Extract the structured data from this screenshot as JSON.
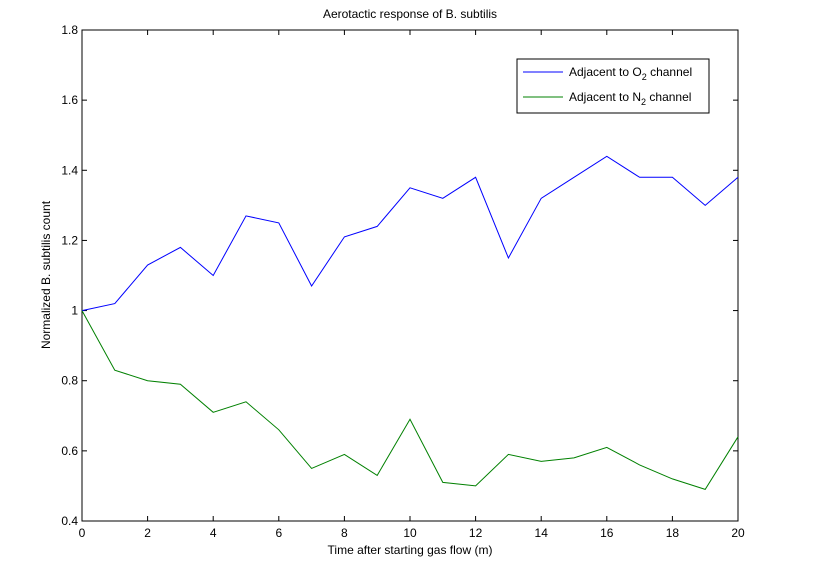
{
  "chart_data": {
    "type": "line",
    "title": "Aerotactic response of B. subtilis",
    "xlabel": "Time after starting gas flow (m)",
    "ylabel": "Normalized B. subtilis count",
    "xlim": [
      0,
      20
    ],
    "ylim": [
      0.4,
      1.8
    ],
    "xticks": [
      0,
      2,
      4,
      6,
      8,
      10,
      12,
      14,
      16,
      18,
      20
    ],
    "yticks": [
      0.4,
      0.6,
      0.8,
      1,
      1.2,
      1.4,
      1.6,
      1.8
    ],
    "xtick_labels": [
      "0",
      "2",
      "4",
      "6",
      "8",
      "10",
      "12",
      "14",
      "16",
      "18",
      "20"
    ],
    "ytick_labels": [
      "0.4",
      "0.6",
      "0.8",
      "1",
      "1.2",
      "1.4",
      "1.6",
      "1.8"
    ],
    "grid": false,
    "legend_position": "top-right",
    "x": [
      0,
      1,
      2,
      3,
      4,
      5,
      6,
      7,
      8,
      9,
      10,
      11,
      12,
      13,
      14,
      15,
      16,
      17,
      18,
      19,
      20
    ],
    "series": [
      {
        "name": "Adjacent to O2 channel",
        "legend_main": "Adjacent to O",
        "legend_sub": "2",
        "legend_tail": " channel",
        "color": "#0000ff",
        "values": [
          1.0,
          1.02,
          1.13,
          1.18,
          1.1,
          1.27,
          1.25,
          1.07,
          1.21,
          1.24,
          1.35,
          1.32,
          1.38,
          1.15,
          1.32,
          1.38,
          1.44,
          1.38,
          1.38,
          1.3,
          1.38
        ]
      },
      {
        "name": "Adjacent to N2 channel",
        "legend_main": "Adjacent to N",
        "legend_sub": "2",
        "legend_tail": " channel",
        "color": "#008000",
        "values": [
          1.0,
          0.83,
          0.8,
          0.79,
          0.71,
          0.74,
          0.66,
          0.55,
          0.59,
          0.53,
          0.69,
          0.51,
          0.5,
          0.59,
          0.57,
          0.58,
          0.61,
          0.56,
          0.52,
          0.49,
          0.64
        ]
      }
    ]
  }
}
